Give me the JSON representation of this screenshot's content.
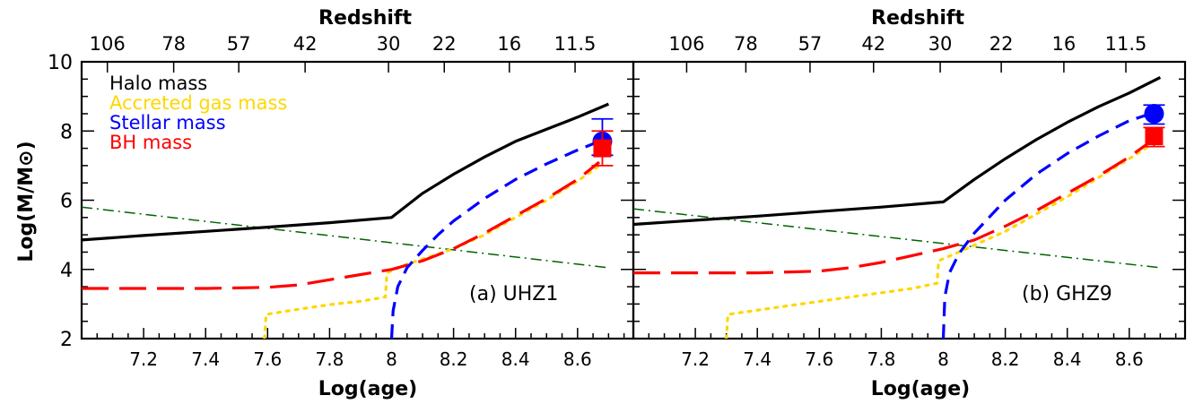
{
  "figure": {
    "ylabel": "Log(M/M⊙)",
    "top_axis_label": "Redshift",
    "xlabel": "Log(age)"
  },
  "chart_data": [
    {
      "type": "line",
      "panel_label": "(a) UHZ1",
      "xlabel": "Log(age)",
      "ylabel": "Log(M/M⊙)",
      "top_xlabel": "Redshift",
      "xlim": [
        7.0,
        8.78
      ],
      "ylim": [
        2,
        10
      ],
      "x_ticks": [
        7.2,
        7.4,
        7.6,
        7.8,
        8,
        8.2,
        8.4,
        8.6
      ],
      "x_tick_labels": [
        "7.2",
        "7.4",
        "7.6",
        "7.8",
        "8",
        "8.2",
        "8.4",
        "8.6"
      ],
      "y_ticks": [
        2,
        4,
        6,
        8,
        10
      ],
      "y_tick_labels": [
        "2",
        "4",
        "6",
        "8",
        "10"
      ],
      "top_ticks": [
        {
          "label": "106",
          "x": 7.083
        },
        {
          "label": "78",
          "x": 7.297
        },
        {
          "label": "57",
          "x": 7.507
        },
        {
          "label": "42",
          "x": 7.721
        },
        {
          "label": "30",
          "x": 7.99
        },
        {
          "label": "22",
          "x": 8.17
        },
        {
          "label": "16",
          "x": 8.38
        },
        {
          "label": "11.5",
          "x": 8.592
        }
      ],
      "legend": [
        {
          "label": "Halo mass",
          "color": "#000000"
        },
        {
          "label": "Accreted gas mass",
          "color": "#FFD700"
        },
        {
          "label": "Stellar mass",
          "color": "#0000FF"
        },
        {
          "label": "BH mass",
          "color": "#FF0000"
        }
      ],
      "series": [
        {
          "name": "Halo mass",
          "color": "#000000",
          "dash": "solid",
          "x": [
            7.0,
            7.2,
            7.4,
            7.6,
            7.8,
            8.0,
            8.1,
            8.2,
            8.3,
            8.4,
            8.5,
            8.6,
            8.7
          ],
          "y": [
            4.85,
            4.98,
            5.1,
            5.22,
            5.35,
            5.5,
            6.2,
            6.75,
            7.25,
            7.7,
            8.05,
            8.4,
            8.78
          ]
        },
        {
          "name": "Accreted gas mass",
          "color": "#FFD700",
          "dash": "dotted",
          "x": [
            7.59,
            7.595,
            7.7,
            7.8,
            7.9,
            7.98,
            7.985,
            8.05,
            8.1,
            8.2,
            8.3,
            8.4,
            8.5,
            8.6,
            8.67
          ],
          "y": [
            2.0,
            2.7,
            2.85,
            2.98,
            3.08,
            3.2,
            3.9,
            4.15,
            4.3,
            4.6,
            5.0,
            5.5,
            6.0,
            6.55,
            7.0
          ]
        },
        {
          "name": "Stellar mass",
          "color": "#0000FF",
          "dash": "dashed",
          "x": [
            8.0,
            8.005,
            8.02,
            8.05,
            8.1,
            8.15,
            8.2,
            8.3,
            8.4,
            8.5,
            8.6,
            8.67
          ],
          "y": [
            2.0,
            2.8,
            3.5,
            4.05,
            4.55,
            5.0,
            5.4,
            6.05,
            6.6,
            7.05,
            7.45,
            7.7
          ]
        },
        {
          "name": "BH mass",
          "color": "#FF0000",
          "dash": "longdash",
          "x": [
            7.0,
            7.2,
            7.4,
            7.6,
            7.7,
            7.8,
            7.9,
            8.0,
            8.1,
            8.2,
            8.3,
            8.4,
            8.5,
            8.6,
            8.67
          ],
          "y": [
            3.45,
            3.45,
            3.45,
            3.48,
            3.55,
            3.7,
            3.85,
            4.0,
            4.25,
            4.6,
            5.05,
            5.55,
            6.05,
            6.6,
            7.1
          ]
        }
      ],
      "data_points": [
        {
          "x": 8.68,
          "y": 7.7,
          "yerr_low": 7.3,
          "yerr_high": 8.35,
          "color": "#0000FF",
          "shape": "circle"
        },
        {
          "x": 8.68,
          "y": 7.5,
          "yerr_low": 7.0,
          "yerr_high": 8.0,
          "color": "#FF0000",
          "shape": "square"
        }
      ]
    },
    {
      "type": "line",
      "panel_label": "(b) GHZ9",
      "xlabel": "Log(age)",
      "ylabel": "Log(M/M⊙)",
      "top_xlabel": "Redshift",
      "xlim": [
        7.0,
        8.78
      ],
      "ylim": [
        2,
        10
      ],
      "x_ticks": [
        7.2,
        7.4,
        7.6,
        7.8,
        8,
        8.2,
        8.4,
        8.6
      ],
      "x_tick_labels": [
        "7.2",
        "7.4",
        "7.6",
        "7.8",
        "8",
        "8.2",
        "8.4",
        "8.6"
      ],
      "y_ticks": [
        2,
        4,
        6,
        8,
        10
      ],
      "y_tick_labels": [
        "2",
        "4",
        "6",
        "8",
        "10"
      ],
      "top_ticks": [
        {
          "label": "106",
          "x": 7.172
        },
        {
          "label": "78",
          "x": 7.363
        },
        {
          "label": "57",
          "x": 7.57
        },
        {
          "label": "42",
          "x": 7.775
        },
        {
          "label": "30",
          "x": 7.99
        },
        {
          "label": "22",
          "x": 8.187
        },
        {
          "label": "16",
          "x": 8.389
        },
        {
          "label": "11.5",
          "x": 8.589
        }
      ],
      "series": [
        {
          "name": "Halo mass",
          "color": "#000000",
          "dash": "solid",
          "x": [
            7.0,
            7.2,
            7.4,
            7.6,
            7.8,
            8.0,
            8.1,
            8.2,
            8.3,
            8.4,
            8.5,
            8.6,
            8.7
          ],
          "y": [
            5.3,
            5.42,
            5.54,
            5.67,
            5.8,
            5.95,
            6.6,
            7.2,
            7.75,
            8.25,
            8.7,
            9.1,
            9.55
          ]
        },
        {
          "name": "Accreted gas mass",
          "color": "#FFD700",
          "dash": "dotted",
          "x": [
            7.3,
            7.305,
            7.5,
            7.7,
            7.9,
            7.98,
            7.985,
            8.05,
            8.1,
            8.2,
            8.3,
            8.4,
            8.5,
            8.6,
            8.67
          ],
          "y": [
            2.0,
            2.7,
            2.95,
            3.2,
            3.45,
            3.6,
            4.25,
            4.5,
            4.7,
            5.1,
            5.6,
            6.1,
            6.65,
            7.2,
            7.6
          ]
        },
        {
          "name": "Stellar mass",
          "color": "#0000FF",
          "dash": "dashed",
          "x": [
            8.0,
            8.005,
            8.02,
            8.05,
            8.1,
            8.2,
            8.3,
            8.4,
            8.5,
            8.6,
            8.67
          ],
          "y": [
            2.0,
            3.2,
            3.9,
            4.45,
            5.05,
            6.0,
            6.75,
            7.35,
            7.85,
            8.3,
            8.5
          ]
        },
        {
          "name": "BH mass",
          "color": "#FF0000",
          "dash": "longdash",
          "x": [
            7.0,
            7.2,
            7.4,
            7.6,
            7.7,
            7.8,
            7.9,
            8.0,
            8.1,
            8.2,
            8.3,
            8.4,
            8.5,
            8.6,
            8.67
          ],
          "y": [
            3.9,
            3.9,
            3.9,
            3.95,
            4.05,
            4.2,
            4.4,
            4.6,
            4.85,
            5.25,
            5.7,
            6.2,
            6.7,
            7.25,
            7.7
          ]
        }
      ],
      "data_points": [
        {
          "x": 8.68,
          "y": 8.5,
          "yerr_low": 8.2,
          "yerr_high": 8.75,
          "color": "#0000FF",
          "shape": "circle"
        },
        {
          "x": 8.68,
          "y": 7.85,
          "yerr_low": 7.55,
          "yerr_high": 8.1,
          "color": "#FF0000",
          "shape": "square"
        }
      ],
      "reference_line": {
        "color": "#006400",
        "dash": "dashdot",
        "x": [
          7.0,
          8.7
        ],
        "y": [
          5.75,
          4.05
        ]
      }
    }
  ],
  "reference_line_a": {
    "color": "#006400",
    "dash": "dashdot",
    "x": [
      7.0,
      8.7
    ],
    "y": [
      5.8,
      4.05
    ]
  }
}
